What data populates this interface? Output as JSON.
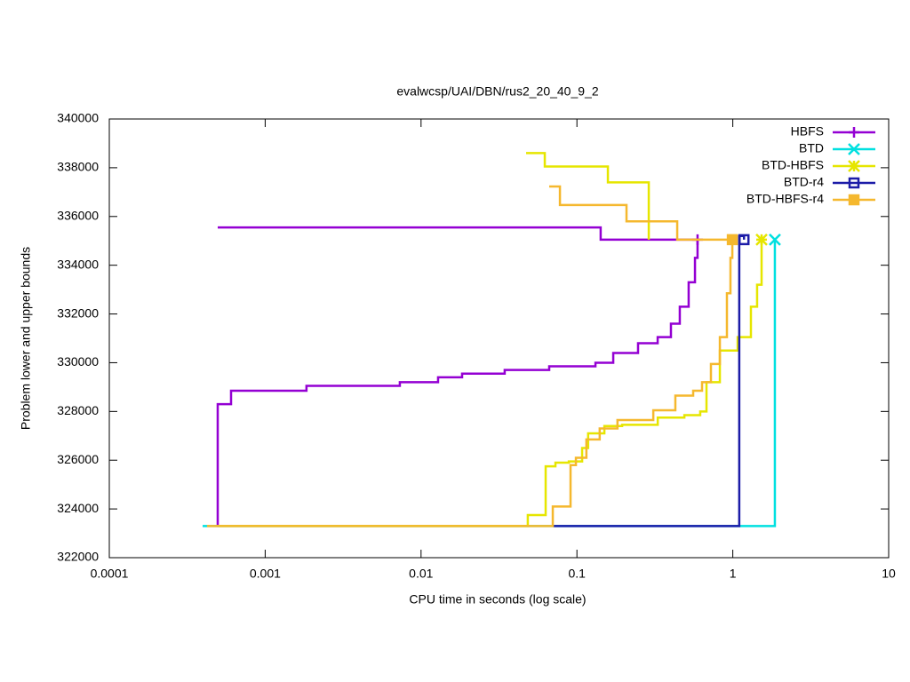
{
  "chart_data": {
    "type": "line",
    "steps": true,
    "title": "evalwcsp/UAI/DBN/rus2_20_40_9_2",
    "x_label": "CPU time in seconds (log scale)",
    "y_label": "Problem lower and upper bounds",
    "x_log": true,
    "xlim": [
      0.0001,
      10
    ],
    "xticks": [
      0.0001,
      0.001,
      0.01,
      0.1,
      1,
      10
    ],
    "ylim": [
      322000,
      340000
    ],
    "yticks": [
      322000,
      324000,
      326000,
      328000,
      330000,
      332000,
      334000,
      336000,
      338000,
      340000
    ],
    "legend": "upper-right",
    "series": [
      {
        "name": "HBFS",
        "color": "#9400d3",
        "marker": "plus",
        "x": [
          0.000496,
          0.000496,
          0.000496,
          0.000496,
          0.000496,
          0.000496,
          0.000604,
          0.00184,
          0.00731,
          0.01286,
          0.01834,
          0.0344,
          0.0664,
          0.1315,
          0.171,
          0.2467,
          0.3296,
          0.401,
          0.457,
          0.521,
          0.572,
          0.594,
          null,
          0.000496,
          0.142,
          0.594
        ],
        "values": [
          323300,
          325200,
          326100,
          327200,
          327750,
          328300,
          328850,
          329050,
          329200,
          329400,
          329550,
          329700,
          329850,
          330000,
          330400,
          330800,
          331050,
          331600,
          332300,
          333300,
          334300,
          335050,
          null,
          335550,
          335050,
          335050
        ]
      },
      {
        "name": "BTD",
        "color": "#00e0e0",
        "marker": "cross",
        "x": [
          0.000397,
          1.862
        ],
        "values": [
          323300,
          335050
        ]
      },
      {
        "name": "BTD-HBFS",
        "color": "#e6e600",
        "marker": "star",
        "x": [
          0.0472,
          0.0622,
          0.158,
          0.289,
          null,
          0.000496,
          0.0484,
          0.063,
          0.0728,
          0.0887,
          0.108,
          0.118,
          0.15,
          0.195,
          0.33,
          0.489,
          0.618,
          0.678,
          0.826,
          1.074,
          1.307,
          1.432,
          1.53
        ],
        "values": [
          338600,
          338050,
          337400,
          335050,
          null,
          323300,
          323750,
          325750,
          325900,
          325950,
          326500,
          327100,
          327400,
          327450,
          327750,
          327850,
          328000,
          329200,
          330500,
          331050,
          332300,
          333200,
          335050
        ]
      },
      {
        "name": "BTD-r4",
        "color": "#1c1ca8",
        "marker": "square",
        "x": [
          0.07,
          1.1,
          1.18,
          1.18
        ],
        "values": [
          323300,
          335200,
          335050,
          335050
        ]
      },
      {
        "name": "BTD-HBFS-r4",
        "color": "#f5b82e",
        "marker": "filled-square",
        "x": [
          0.0664,
          0.0778,
          0.208,
          0.44,
          0.993,
          null,
          0.000424,
          0.07,
          0.091,
          0.0985,
          0.115,
          0.14,
          0.182,
          0.309,
          0.428,
          0.557,
          0.635,
          0.724,
          0.826,
          0.917,
          0.966,
          0.993
        ],
        "values": [
          337230,
          336470,
          335800,
          335050,
          335050,
          null,
          323300,
          324100,
          325800,
          326100,
          326850,
          327300,
          327650,
          328050,
          328650,
          328850,
          329200,
          329950,
          331050,
          332850,
          334300,
          335050
        ]
      }
    ]
  }
}
